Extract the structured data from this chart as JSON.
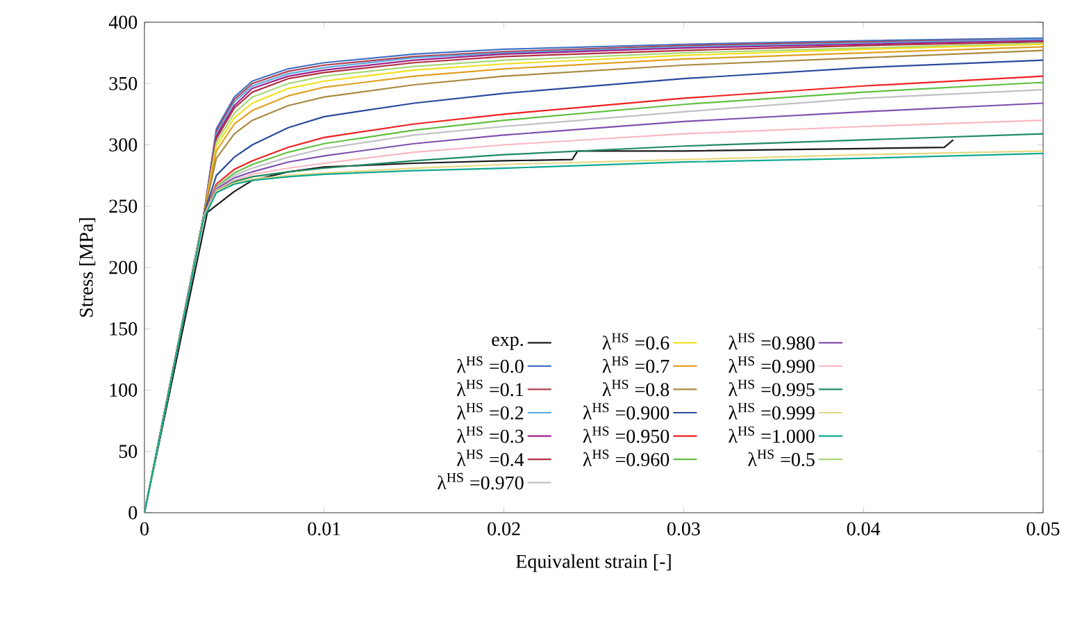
{
  "chart_data": {
    "type": "line",
    "xlabel": "Equivalent strain [-]",
    "ylabel": "Stress [MPa]",
    "xlim": [
      0,
      0.05
    ],
    "ylim": [
      0,
      400
    ],
    "xticks": [
      0,
      0.01,
      0.02,
      0.03,
      0.04,
      0.05
    ],
    "yticks": [
      0,
      50,
      100,
      150,
      200,
      250,
      300,
      350,
      400
    ],
    "grid": false,
    "legend": "bottom",
    "marker": "none",
    "line_style": "solid",
    "x": [
      0,
      0.0033,
      0.004,
      0.005,
      0.006,
      0.008,
      0.01,
      0.015,
      0.02,
      0.03,
      0.04,
      0.05
    ],
    "series": [
      {
        "name": "exp.",
        "color": "#1a1a1a",
        "x": [
          0,
          0.0035,
          0.005,
          0.006,
          0.008,
          0.01,
          0.015,
          0.02,
          0.0238,
          0.0241,
          0.03,
          0.04,
          0.0445,
          0.045
        ],
        "values": [
          0,
          245,
          262,
          271,
          278,
          282,
          285,
          287,
          288,
          295,
          295,
          297,
          298,
          304
        ]
      },
      {
        "name": "λ$^{HS}$ =0.0",
        "color": "#4472c4",
        "values": [
          0,
          243,
          313,
          339,
          352,
          362,
          367,
          374,
          378,
          382,
          385,
          387
        ]
      },
      {
        "name": "λ$^{HS}$ =0.1",
        "color": "#b04050",
        "values": [
          0,
          243,
          311,
          337,
          350,
          360,
          365,
          372,
          376,
          381,
          384,
          386
        ]
      },
      {
        "name": "λ$^{HS}$ =0.2",
        "color": "#5aaae0",
        "values": [
          0,
          243,
          309,
          335,
          348,
          358,
          363,
          371,
          375,
          380,
          383,
          386
        ]
      },
      {
        "name": "λ$^{HS}$ =0.3",
        "color": "#a0208a",
        "values": [
          0,
          243,
          307,
          332,
          346,
          356,
          361,
          369,
          374,
          379,
          382,
          385
        ]
      },
      {
        "name": "λ$^{HS}$ =0.4",
        "color": "#b03040",
        "values": [
          0,
          243,
          305,
          330,
          343,
          354,
          359,
          367,
          372,
          377,
          381,
          384
        ]
      },
      {
        "name": "λ$^{HS}$ =0.5",
        "color": "#a8d878",
        "values": [
          0,
          243,
          302,
          326,
          339,
          350,
          356,
          364,
          369,
          375,
          379,
          383
        ]
      },
      {
        "name": "λ$^{HS}$ =0.6",
        "color": "#f0e020",
        "values": [
          0,
          243,
          299,
          322,
          334,
          346,
          352,
          361,
          366,
          373,
          378,
          382
        ]
      },
      {
        "name": "λ$^{HS}$ =0.7",
        "color": "#e0a020",
        "values": [
          0,
          243,
          295,
          317,
          328,
          340,
          347,
          356,
          362,
          370,
          375,
          380
        ]
      },
      {
        "name": "λ$^{HS}$ =0.8",
        "color": "#a88a40",
        "values": [
          0,
          243,
          289,
          309,
          320,
          332,
          339,
          349,
          356,
          365,
          371,
          377
        ]
      },
      {
        "name": "λ$^{HS}$ =0.900",
        "color": "#2a4a9a",
        "values": [
          0,
          243,
          275,
          290,
          300,
          314,
          323,
          334,
          342,
          354,
          363,
          369
        ]
      },
      {
        "name": "λ$^{HS}$ =0.950",
        "color": "#f02020",
        "values": [
          0,
          242,
          268,
          280,
          287,
          298,
          306,
          317,
          325,
          338,
          348,
          356
        ]
      },
      {
        "name": "λ$^{HS}$ =0.960",
        "color": "#60c040",
        "values": [
          0,
          242,
          266,
          277,
          284,
          294,
          301,
          312,
          320,
          333,
          343,
          351
        ]
      },
      {
        "name": "λ$^{HS}$ =0.970",
        "color": "#c0c0c8",
        "values": [
          0,
          242,
          265,
          275,
          281,
          290,
          297,
          308,
          315,
          327,
          338,
          345
        ]
      },
      {
        "name": "λ$^{HS}$ =0.980",
        "color": "#8050b0",
        "values": [
          0,
          242,
          264,
          273,
          278,
          286,
          291,
          301,
          308,
          319,
          327,
          334
        ]
      },
      {
        "name": "λ$^{HS}$ =0.990",
        "color": "#f8b8c0",
        "values": [
          0,
          242,
          263,
          271,
          276,
          281,
          285,
          294,
          300,
          309,
          315,
          320
        ]
      },
      {
        "name": "λ$^{HS}$ =0.995",
        "color": "#208a60",
        "values": [
          0,
          241,
          262,
          270,
          274,
          278,
          281,
          287,
          292,
          299,
          304,
          309
        ]
      },
      {
        "name": "λ$^{HS}$ =0.999",
        "color": "#e8d880",
        "values": [
          0,
          241,
          262,
          269,
          272,
          275,
          277,
          281,
          284,
          288,
          292,
          295
        ]
      },
      {
        "name": "λ$^{HS}$ =1.000",
        "color": "#10a890",
        "values": [
          0,
          240,
          261,
          268,
          271,
          274,
          276,
          279,
          281,
          286,
          289,
          293
        ]
      }
    ]
  }
}
